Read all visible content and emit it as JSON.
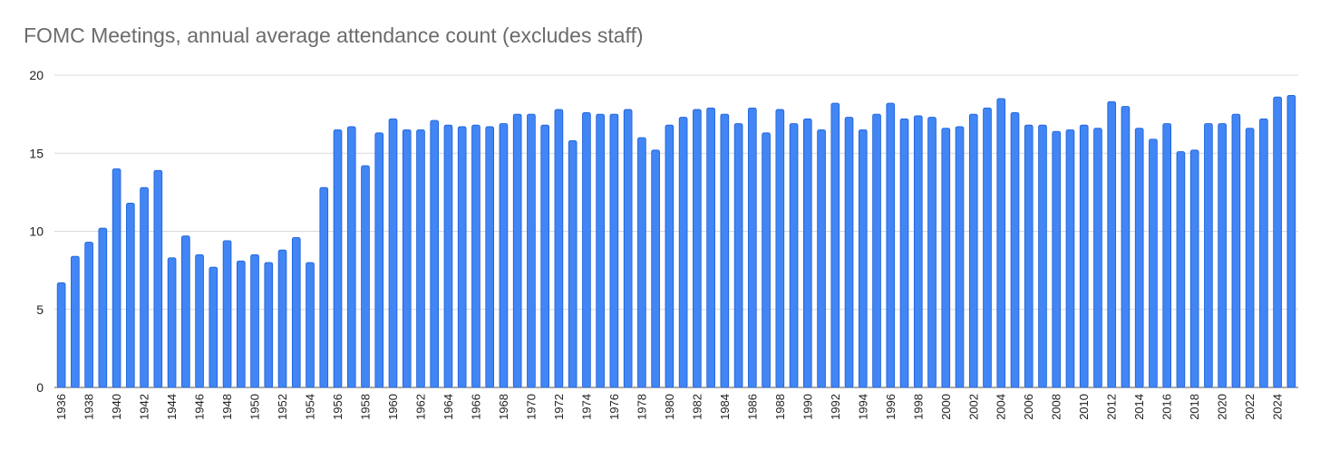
{
  "chart_data": {
    "type": "bar",
    "title": "FOMC Meetings, annual average attendance count (excludes staff)",
    "xlabel": "",
    "ylabel": "",
    "ylim": [
      0,
      20
    ],
    "yticks": [
      0,
      5,
      10,
      15,
      20
    ],
    "grid": true,
    "legend": "none",
    "bar_color": "#4285f4",
    "bar_edge_color": "#1a5fd6",
    "grid_color": "#d9d9d9",
    "title_color": "#6b6b6b",
    "categories": [
      "1936",
      "1937",
      "1938",
      "1939",
      "1940",
      "1941",
      "1942",
      "1943",
      "1944",
      "1945",
      "1946",
      "1947",
      "1948",
      "1949",
      "1950",
      "1951",
      "1952",
      "1953",
      "1954",
      "1955",
      "1956",
      "1957",
      "1958",
      "1959",
      "1960",
      "1961",
      "1962",
      "1963",
      "1964",
      "1965",
      "1966",
      "1967",
      "1968",
      "1969",
      "1970",
      "1971",
      "1972",
      "1973",
      "1974",
      "1975",
      "1976",
      "1977",
      "1978",
      "1979",
      "1980",
      "1981",
      "1982",
      "1983",
      "1984",
      "1985",
      "1986",
      "1987",
      "1988",
      "1989",
      "1990",
      "1991",
      "1992",
      "1993",
      "1994",
      "1995",
      "1996",
      "1997",
      "1998",
      "1999",
      "2000",
      "2001",
      "2002",
      "2003",
      "2004",
      "2005",
      "2006",
      "2007",
      "2008",
      "2009",
      "2010",
      "2011",
      "2012",
      "2013",
      "2014",
      "2015",
      "2016",
      "2017",
      "2018",
      "2019",
      "2020",
      "2021",
      "2022",
      "2023",
      "2024",
      "2025"
    ],
    "tick_labels": [
      "1936",
      "1938",
      "1940",
      "1942",
      "1944",
      "1946",
      "1948",
      "1950",
      "1952",
      "1954",
      "1956",
      "1958",
      "1960",
      "1962",
      "1964",
      "1966",
      "1968",
      "1970",
      "1972",
      "1974",
      "1976",
      "1978",
      "1980",
      "1982",
      "1984",
      "1986",
      "1988",
      "1990",
      "1992",
      "1994",
      "1996",
      "1998",
      "2000",
      "2002",
      "2004",
      "2006",
      "2008",
      "2010",
      "2012",
      "2014",
      "2016",
      "2018",
      "2020",
      "2022",
      "2024"
    ],
    "values": [
      6.7,
      8.4,
      9.3,
      10.2,
      14.0,
      11.8,
      12.8,
      13.9,
      8.3,
      9.7,
      8.5,
      7.7,
      9.4,
      8.1,
      8.5,
      8.0,
      8.8,
      9.6,
      8.0,
      12.8,
      16.5,
      16.7,
      14.2,
      16.3,
      17.2,
      16.5,
      16.5,
      17.1,
      16.8,
      16.7,
      16.8,
      16.7,
      16.9,
      17.5,
      17.5,
      16.8,
      17.8,
      15.8,
      17.6,
      17.5,
      17.5,
      17.8,
      16.0,
      15.2,
      16.8,
      17.3,
      17.8,
      17.9,
      17.5,
      16.9,
      17.9,
      16.3,
      17.8,
      16.9,
      17.2,
      16.5,
      18.2,
      17.3,
      16.5,
      17.5,
      18.2,
      17.2,
      17.4,
      17.3,
      16.6,
      16.7,
      17.5,
      17.9,
      18.5,
      17.6,
      16.8,
      16.8,
      16.4,
      16.5,
      16.8,
      16.6,
      18.3,
      18.0,
      16.6,
      15.9,
      16.9,
      15.1,
      15.2,
      16.9,
      16.9,
      17.5,
      16.6,
      17.2,
      18.6,
      18.7
    ]
  }
}
